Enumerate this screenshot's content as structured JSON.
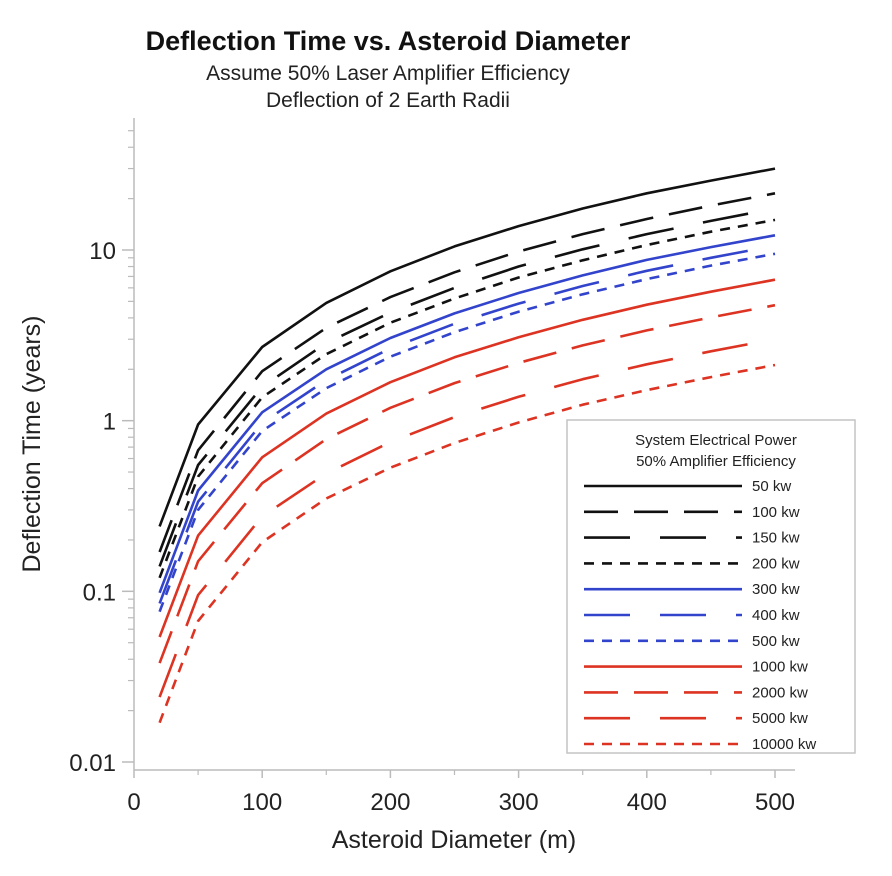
{
  "chart_data": {
    "type": "line",
    "title": "Deflection Time vs. Asteroid Diameter",
    "subtitle_lines": [
      "Assume 50% Laser Amplifier Efficiency",
      "Deflection of 2 Earth Radii"
    ],
    "xlabel": "Asteroid Diameter (m)",
    "ylabel": "Deflection Time (years)",
    "xlim": [
      0,
      500
    ],
    "ylim": [
      0.01,
      100
    ],
    "yscale": "log",
    "x_ticks": [
      0,
      100,
      200,
      300,
      400,
      500
    ],
    "x_tick_labels": [
      "0",
      "100",
      "200",
      "300",
      "400",
      "500"
    ],
    "y_ticks": [
      0.01,
      0.1,
      1,
      10
    ],
    "y_tick_labels": [
      "0.01",
      "0.1",
      "1",
      "10"
    ],
    "grid": false,
    "legend": {
      "title_lines": [
        "System Electrical Power",
        "50% Amplifier Efficiency"
      ],
      "placement": "lower-right"
    },
    "x": [
      20,
      50,
      100,
      150,
      200,
      250,
      300,
      350,
      400,
      450,
      500
    ],
    "series": [
      {
        "name": "50 kw",
        "color": "#111111",
        "dash": "solid",
        "values": [
          0.24,
          0.95,
          2.7,
          4.9,
          7.5,
          10.5,
          13.8,
          17.5,
          21.5,
          25.5,
          30.0
        ]
      },
      {
        "name": "100 kw",
        "color": "#111111",
        "dash": "long",
        "values": [
          0.17,
          0.67,
          1.95,
          3.5,
          5.3,
          7.4,
          9.8,
          12.4,
          15.2,
          18.2,
          21.5
        ]
      },
      {
        "name": "150 kw",
        "color": "#111111",
        "dash": "extralong",
        "values": [
          0.14,
          0.55,
          1.58,
          2.85,
          4.3,
          6.0,
          8.0,
          10.1,
          12.4,
          14.8,
          17.5
        ]
      },
      {
        "name": "200 kw",
        "color": "#111111",
        "dash": "short",
        "values": [
          0.12,
          0.47,
          1.37,
          2.45,
          3.75,
          5.2,
          6.9,
          8.7,
          10.7,
          12.8,
          15.0
        ]
      },
      {
        "name": "300 kw",
        "color": "#3344cc",
        "dash": "solid",
        "values": [
          0.098,
          0.39,
          1.12,
          2.0,
          3.05,
          4.25,
          5.6,
          7.1,
          8.75,
          10.4,
          12.2
        ]
      },
      {
        "name": "400 kw",
        "color": "#3344cc",
        "dash": "extralong",
        "values": [
          0.085,
          0.335,
          0.97,
          1.73,
          2.65,
          3.7,
          4.85,
          6.15,
          7.55,
          9.0,
          10.6
        ]
      },
      {
        "name": "500 kw",
        "color": "#3344cc",
        "dash": "short",
        "values": [
          0.076,
          0.3,
          0.87,
          1.55,
          2.37,
          3.3,
          4.35,
          5.5,
          6.75,
          8.1,
          9.5
        ]
      },
      {
        "name": "1000 kw",
        "color": "#dd3322",
        "dash": "solid",
        "values": [
          0.054,
          0.212,
          0.61,
          1.1,
          1.68,
          2.35,
          3.08,
          3.9,
          4.78,
          5.7,
          6.7
        ]
      },
      {
        "name": "2000 kw",
        "color": "#dd3322",
        "dash": "long",
        "values": [
          0.038,
          0.15,
          0.43,
          0.78,
          1.19,
          1.66,
          2.18,
          2.76,
          3.38,
          4.03,
          4.75
        ]
      },
      {
        "name": "5000 kw",
        "color": "#dd3322",
        "dash": "extralong",
        "values": [
          0.024,
          0.095,
          0.275,
          0.49,
          0.75,
          1.05,
          1.38,
          1.75,
          2.14,
          2.55,
          3.0
        ]
      },
      {
        "name": "10000 kw",
        "color": "#dd3322",
        "dash": "short",
        "values": [
          0.017,
          0.067,
          0.194,
          0.35,
          0.53,
          0.74,
          0.975,
          1.24,
          1.51,
          1.8,
          2.12
        ]
      }
    ]
  }
}
